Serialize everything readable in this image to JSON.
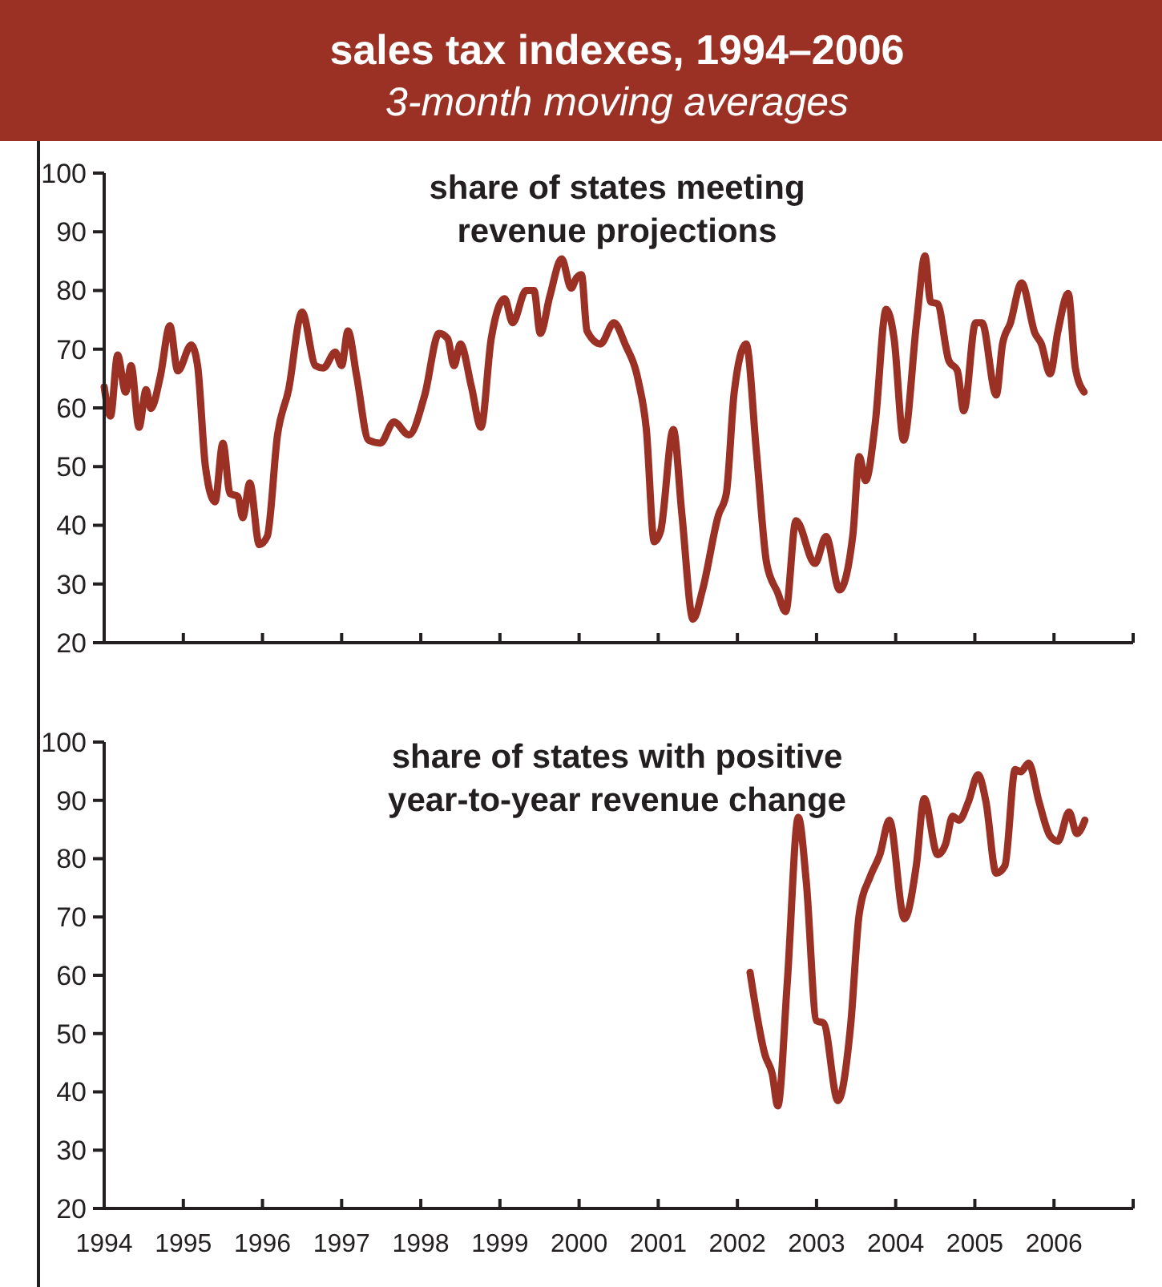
{
  "chart_data": [
    {
      "type": "other",
      "title": "sales tax indexes, 1994–2006",
      "subtitle": "3-month moving averages"
    },
    {
      "type": "line",
      "title": "share of states meeting revenue projections",
      "xlim": [
        1994,
        2007
      ],
      "xticks": [
        1994,
        1995,
        1996,
        1997,
        1998,
        1999,
        2000,
        2001,
        2002,
        2003,
        2004,
        2005,
        2006,
        {
          "value": 2007,
          "label": null
        }
      ],
      "ylim": [
        20,
        100
      ],
      "yticks": [
        20,
        30,
        40,
        50,
        60,
        70,
        80,
        90,
        100
      ],
      "tick_labels": "y",
      "grid": false,
      "line_style": "solid",
      "marker": "none",
      "series": [
        {
          "color": "#9b3124",
          "x": [
            1994.0,
            1994.08,
            1994.17,
            1994.27,
            1994.34,
            1994.44,
            1994.53,
            1994.59,
            1994.71,
            1994.83,
            1994.93,
            1995.1,
            1995.18,
            1995.28,
            1995.4,
            1995.5,
            1995.59,
            1995.69,
            1995.75,
            1995.84,
            1995.96,
            1996.06,
            1996.19,
            1996.33,
            1996.5,
            1996.67,
            1996.77,
            1996.92,
            1997.0,
            1997.08,
            1997.19,
            1997.34,
            1997.49,
            1997.66,
            1997.85,
            1998.05,
            1998.23,
            1998.34,
            1998.42,
            1998.5,
            1998.64,
            1998.76,
            1998.89,
            1999.06,
            1999.16,
            1999.33,
            1999.43,
            1999.51,
            1999.63,
            1999.78,
            1999.9,
            1999.97,
            2000.03,
            2000.1,
            2000.27,
            2000.44,
            2000.58,
            2000.75,
            2000.85,
            2000.95,
            2001.03,
            2001.19,
            2001.3,
            2001.44,
            2001.56,
            2001.76,
            2001.86,
            2001.96,
            2002.11,
            2002.24,
            2002.37,
            2002.51,
            2002.61,
            2002.74,
            2002.98,
            2003.12,
            2003.29,
            2003.46,
            2003.54,
            2003.62,
            2003.74,
            2003.88,
            2003.98,
            2004.1,
            2004.27,
            2004.37,
            2004.44,
            2004.53,
            2004.67,
            2004.78,
            2004.86,
            2005.01,
            2005.09,
            2005.27,
            2005.35,
            2005.45,
            2005.59,
            2005.76,
            2005.84,
            2005.95,
            2006.05,
            2006.18,
            2006.27,
            2006.38
          ],
          "values": [
            63.6,
            58.6,
            69,
            62.7,
            67.2,
            56.7,
            63.1,
            59.9,
            65.4,
            74,
            66.3,
            70.7,
            67.2,
            49.9,
            44,
            54,
            45.4,
            44.9,
            41.3,
            47.2,
            36.7,
            38.1,
            55.4,
            63.1,
            76.3,
            67.2,
            66.8,
            69.5,
            67.2,
            73.1,
            65.4,
            54.5,
            54,
            57.6,
            55.4,
            62.2,
            72.7,
            71.8,
            67.2,
            70.9,
            63.6,
            56.7,
            71.8,
            78.6,
            74.5,
            80,
            80,
            72.7,
            79,
            85.4,
            80.4,
            82.2,
            82.7,
            73.1,
            70.9,
            74.5,
            70.9,
            64.5,
            56.3,
            37.2,
            39,
            56.3,
            41.7,
            24,
            29,
            41.7,
            45.4,
            62.7,
            70.9,
            52.6,
            33.5,
            28.5,
            25.3,
            40.8,
            33.5,
            38.1,
            29,
            38.5,
            51.7,
            47.6,
            57.2,
            76.8,
            71.8,
            54.5,
            75.4,
            85.9,
            78.1,
            77.7,
            68.1,
            66.3,
            59.5,
            74.5,
            74.5,
            62.2,
            70.9,
            74.5,
            81.3,
            72.7,
            70.9,
            65.8,
            73.1,
            79.5,
            66.8,
            62.7
          ]
        }
      ]
    },
    {
      "type": "line",
      "title": "share of states with positive year-to-year revenue change",
      "xlim": [
        1994,
        2007
      ],
      "xticks": [
        1994,
        1995,
        1996,
        1997,
        1998,
        1999,
        2000,
        2001,
        2002,
        2003,
        2004,
        2005,
        2006,
        {
          "value": 2007,
          "label": null
        }
      ],
      "ylim": [
        20,
        100
      ],
      "yticks": [
        20,
        30,
        40,
        50,
        60,
        70,
        80,
        90,
        100
      ],
      "grid": false,
      "line_style": "solid",
      "marker": "none",
      "series": [
        {
          "color": "#9b3124",
          "x": [
            2002.16,
            2002.35,
            2002.44,
            2002.51,
            2002.63,
            2002.77,
            2002.87,
            2003.0,
            2003.09,
            2003.27,
            2003.43,
            2003.54,
            2003.68,
            2003.8,
            2003.92,
            2004.11,
            2004.26,
            2004.36,
            2004.53,
            2004.63,
            2004.72,
            2004.8,
            2004.92,
            2005.04,
            2005.14,
            2005.27,
            2005.38,
            2005.51,
            2005.58,
            2005.68,
            2005.81,
            2005.95,
            2006.05,
            2006.19,
            2006.29,
            2006.39
          ],
          "values": [
            60.5,
            46.3,
            43.1,
            37.6,
            58.7,
            87.1,
            76.1,
            52.2,
            51.8,
            38.5,
            51.3,
            70.6,
            77,
            80.7,
            86.6,
            69.7,
            78.8,
            90.3,
            80.7,
            82.5,
            87.3,
            86.6,
            89.8,
            94.4,
            89.8,
            77.5,
            78.8,
            95.3,
            94.9,
            96.4,
            89.8,
            83.9,
            83,
            88,
            84.3,
            86.6
          ]
        }
      ]
    }
  ]
}
